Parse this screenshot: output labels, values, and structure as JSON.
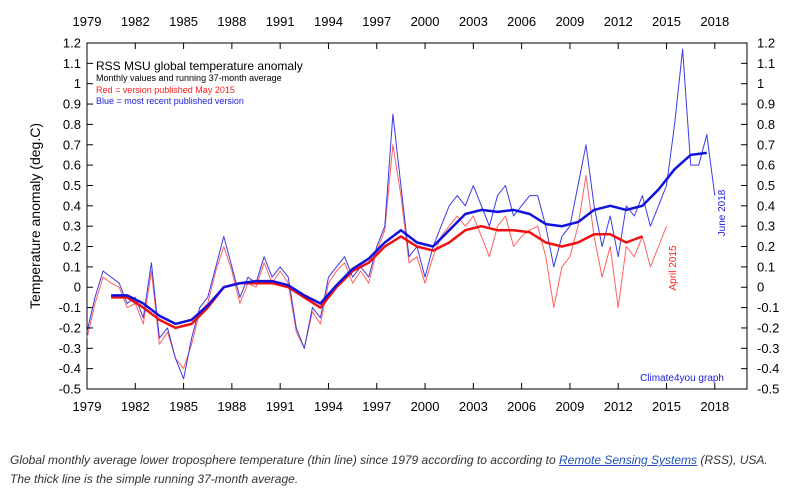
{
  "chart_data": {
    "type": "line",
    "title": "RSS MSU global temperature anomaly",
    "subtitle": "Monthly values and running 37-month average",
    "legend": [
      "Red = version published May 2015",
      "Blue = most recent published version"
    ],
    "legend_colors": [
      "#ff2020",
      "#2020e0"
    ],
    "ylabel": "Temperature anomaly (deg.C)",
    "xlim": [
      1979,
      2020
    ],
    "ylim": [
      -0.5,
      1.2
    ],
    "x_ticks": [
      "1979",
      "1982",
      "1985",
      "1988",
      "1991",
      "1994",
      "1997",
      "2000",
      "2003",
      "2006",
      "2009",
      "2012",
      "2015",
      "2018"
    ],
    "y_ticks": [
      "1.2",
      "1.1",
      "1",
      "0.9",
      "0.8",
      "0.7",
      "0.6",
      "0.5",
      "0.4",
      "0.3",
      "0.2",
      "0.1",
      "0",
      "-0.1",
      "-0.2",
      "-0.3",
      "-0.4",
      "-0.5"
    ],
    "series": [
      {
        "name": "Blue = most recent published version",
        "style": "thin",
        "color": "#3a3ae8",
        "x": [
          1979,
          1979.5,
          1980,
          1980.5,
          1981,
          1981.5,
          1982,
          1982.5,
          1983,
          1983.5,
          1984,
          1984.5,
          1985,
          1985.5,
          1986,
          1986.5,
          1987,
          1987.5,
          1988,
          1988.5,
          1989,
          1989.5,
          1990,
          1990.5,
          1991,
          1991.5,
          1992,
          1992.5,
          1993,
          1993.5,
          1994,
          1994.5,
          1995,
          1995.5,
          1996,
          1996.5,
          1997,
          1997.5,
          1998,
          1998.5,
          1999,
          1999.5,
          2000,
          2000.5,
          2001,
          2001.5,
          2002,
          2002.5,
          2003,
          2003.5,
          2004,
          2004.5,
          2005,
          2005.5,
          2006,
          2006.5,
          2007,
          2007.5,
          2008,
          2008.5,
          2009,
          2009.5,
          2010,
          2010.5,
          2011,
          2011.5,
          2012,
          2012.5,
          2013,
          2013.5,
          2014,
          2014.5,
          2015,
          2015.5,
          2016,
          2016.5,
          2017,
          2017.5,
          2018
        ],
        "values": [
          -0.22,
          -0.05,
          0.08,
          0.05,
          0.02,
          -0.08,
          -0.05,
          -0.15,
          0.12,
          -0.25,
          -0.2,
          -0.35,
          -0.45,
          -0.25,
          -0.1,
          -0.05,
          0.1,
          0.25,
          0.1,
          -0.05,
          0.05,
          0.02,
          0.15,
          0.05,
          0.1,
          0.05,
          -0.2,
          -0.3,
          -0.1,
          -0.15,
          0.05,
          0.1,
          0.15,
          0.05,
          0.1,
          0.05,
          0.2,
          0.3,
          0.85,
          0.5,
          0.15,
          0.2,
          0.05,
          0.2,
          0.3,
          0.4,
          0.45,
          0.4,
          0.5,
          0.4,
          0.3,
          0.45,
          0.5,
          0.35,
          0.4,
          0.45,
          0.45,
          0.3,
          0.1,
          0.25,
          0.3,
          0.5,
          0.7,
          0.4,
          0.2,
          0.35,
          0.15,
          0.4,
          0.35,
          0.45,
          0.3,
          0.4,
          0.5,
          0.8,
          1.17,
          0.6,
          0.6,
          0.75,
          0.45
        ]
      },
      {
        "name": "Red = version published May 2015",
        "style": "thin",
        "color": "#ff6060",
        "x": [
          1979,
          1979.5,
          1980,
          1980.5,
          1981,
          1981.5,
          1982,
          1982.5,
          1983,
          1983.5,
          1984,
          1984.5,
          1985,
          1985.5,
          1986,
          1986.5,
          1987,
          1987.5,
          1988,
          1988.5,
          1989,
          1989.5,
          1990,
          1990.5,
          1991,
          1991.5,
          1992,
          1992.5,
          1993,
          1993.5,
          1994,
          1994.5,
          1995,
          1995.5,
          1996,
          1996.5,
          1997,
          1997.5,
          1998,
          1998.5,
          1999,
          1999.5,
          2000,
          2000.5,
          2001,
          2001.5,
          2002,
          2002.5,
          2003,
          2003.5,
          2004,
          2004.5,
          2005,
          2005.5,
          2006,
          2006.5,
          2007,
          2007.5,
          2008,
          2008.5,
          2009,
          2009.5,
          2010,
          2010.5,
          2011,
          2011.5,
          2012,
          2012.5,
          2013,
          2013.5,
          2014,
          2014.5,
          2015
        ],
        "values": [
          -0.25,
          -0.08,
          0.05,
          0.02,
          0,
          -0.1,
          -0.08,
          -0.18,
          0.08,
          -0.28,
          -0.22,
          -0.35,
          -0.4,
          -0.28,
          -0.12,
          -0.08,
          0.08,
          0.2,
          0.08,
          -0.08,
          0.02,
          0,
          0.12,
          0.02,
          0.08,
          0.02,
          -0.22,
          -0.3,
          -0.12,
          -0.18,
          0.02,
          0.08,
          0.12,
          0.02,
          0.08,
          0.02,
          0.18,
          0.28,
          0.7,
          0.45,
          0.12,
          0.15,
          0.02,
          0.15,
          0.25,
          0.3,
          0.35,
          0.3,
          0.35,
          0.25,
          0.15,
          0.3,
          0.35,
          0.2,
          0.25,
          0.28,
          0.3,
          0.15,
          -0.1,
          0.1,
          0.15,
          0.3,
          0.55,
          0.25,
          0.05,
          0.2,
          -0.1,
          0.2,
          0.15,
          0.25,
          0.1,
          0.2,
          0.3
        ]
      },
      {
        "name": "Red = version published May 2015",
        "style": "thick",
        "color": "#ee1111",
        "x": [
          1980.5,
          1981.5,
          1982.5,
          1983.5,
          1984.5,
          1985.5,
          1986.5,
          1987.5,
          1988.5,
          1989.5,
          1990.5,
          1991.5,
          1992.5,
          1993.5,
          1994.5,
          1995.5,
          1996.5,
          1997.5,
          1998.5,
          1999.5,
          2000.5,
          2001.5,
          2002.5,
          2003.5,
          2004.5,
          2005.5,
          2006.5,
          2007.5,
          2008.5,
          2009.5,
          2010.5,
          2011.5,
          2012.5,
          2013.5
        ],
        "values": [
          -0.05,
          -0.05,
          -0.1,
          -0.16,
          -0.2,
          -0.18,
          -0.1,
          0.0,
          0.02,
          0.02,
          0.02,
          0.0,
          -0.05,
          -0.1,
          0.0,
          0.08,
          0.12,
          0.2,
          0.25,
          0.2,
          0.18,
          0.22,
          0.28,
          0.3,
          0.28,
          0.28,
          0.27,
          0.22,
          0.2,
          0.22,
          0.26,
          0.26,
          0.22,
          0.25
        ]
      },
      {
        "name": "Blue = most recent published version",
        "style": "thick",
        "color": "#1111dd",
        "x": [
          1980.5,
          1981.5,
          1982.5,
          1983.5,
          1984.5,
          1985.5,
          1986.5,
          1987.5,
          1988.5,
          1989.5,
          1990.5,
          1991.5,
          1992.5,
          1993.5,
          1994.5,
          1995.5,
          1996.5,
          1997.5,
          1998.5,
          1999.5,
          2000.5,
          2001.5,
          2002.5,
          2003.5,
          2004.5,
          2005.5,
          2006.5,
          2007.5,
          2008.5,
          2009.5,
          2010.5,
          2011.5,
          2012.5,
          2013.5,
          2014.5,
          2015.5,
          2016.5,
          2017.5
        ],
        "values": [
          -0.04,
          -0.04,
          -0.08,
          -0.14,
          -0.18,
          -0.16,
          -0.09,
          0.0,
          0.02,
          0.03,
          0.03,
          0.01,
          -0.04,
          -0.08,
          0.01,
          0.09,
          0.14,
          0.22,
          0.28,
          0.22,
          0.2,
          0.28,
          0.36,
          0.38,
          0.37,
          0.38,
          0.36,
          0.31,
          0.3,
          0.32,
          0.38,
          0.4,
          0.38,
          0.4,
          0.48,
          0.58,
          0.65,
          0.66
        ]
      }
    ],
    "annotations": {
      "red_end": "April 2015",
      "blue_end": "June 2018",
      "credit": "Climate4you graph"
    },
    "grid": false
  },
  "caption": {
    "before": "Global monthly average lower troposphere temperature (thin line) since 1979 according to according to ",
    "link": "Remote Sensing Systems",
    "after": " (RSS), USA. The thick line is the simple running 37-month average."
  }
}
